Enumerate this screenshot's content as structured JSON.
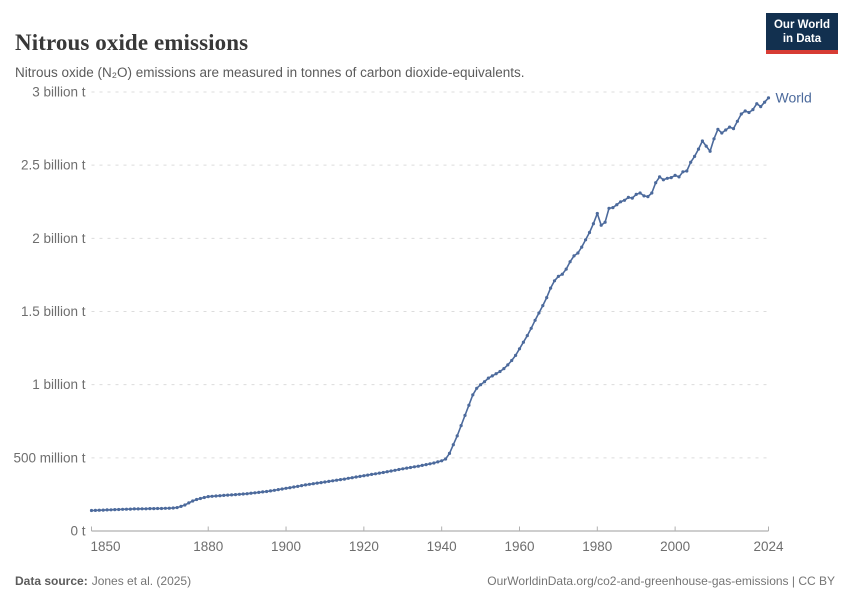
{
  "header": {
    "title": "Nitrous oxide emissions",
    "subtitle": "Nitrous oxide (N₂O) emissions are measured in tonnes of carbon dioxide-equivalents."
  },
  "logo": {
    "line1": "Our World",
    "line2": "in Data",
    "bg_color": "#12304f",
    "accent_color": "#d73c34"
  },
  "footer": {
    "data_source_label": "Data source:",
    "data_source_value": "Jones et al. (2025)",
    "link_text": "OurWorldinData.org/co2-and-greenhouse-gas-emissions | CC BY"
  },
  "chart_data": {
    "type": "line",
    "title": "Nitrous oxide emissions",
    "unit": "million tonnes of CO2-equivalents",
    "xlim": [
      1850,
      2024
    ],
    "ylim": [
      0,
      3000
    ],
    "grid": true,
    "line_color": "#4c6a9c",
    "axis_color": "#9e9e9e",
    "grid_color": "#dcdcdc",
    "tick_label_color": "#6e6e6e",
    "x_ticks": [
      1850,
      1880,
      1900,
      1920,
      1940,
      1960,
      1980,
      2000,
      2024
    ],
    "y_ticks": [
      {
        "v": 0,
        "label": "0 t"
      },
      {
        "v": 500,
        "label": "500 million t"
      },
      {
        "v": 1000,
        "label": "1 billion t"
      },
      {
        "v": 1500,
        "label": "1.5 billion t"
      },
      {
        "v": 2000,
        "label": "2 billion t"
      },
      {
        "v": 2500,
        "label": "2.5 billion t"
      },
      {
        "v": 3000,
        "label": "3 billion t"
      }
    ],
    "series": [
      {
        "name": "World",
        "x_start": 1850,
        "x_step": 1,
        "values": [
          140,
          141,
          142,
          143,
          144,
          145,
          146,
          147,
          148,
          149,
          150,
          151,
          151,
          152,
          152,
          153,
          153,
          154,
          154,
          155,
          156,
          157,
          160,
          168,
          178,
          192,
          205,
          215,
          222,
          229,
          235,
          237,
          239,
          241,
          243,
          245,
          247,
          249,
          251,
          253,
          255,
          258,
          261,
          264,
          267,
          270,
          274,
          278,
          283,
          287,
          292,
          296,
          301,
          305,
          310,
          315,
          319,
          323,
          327,
          331,
          335,
          339,
          343,
          347,
          351,
          355,
          360,
          364,
          369,
          373,
          378,
          382,
          387,
          391,
          396,
          400,
          405,
          410,
          415,
          420,
          425,
          430,
          434,
          439,
          443,
          448,
          454,
          459,
          465,
          472,
          480,
          492,
          530,
          590,
          650,
          720,
          790,
          860,
          930,
          975,
          1000,
          1020,
          1045,
          1060,
          1075,
          1090,
          1110,
          1135,
          1165,
          1200,
          1245,
          1290,
          1335,
          1385,
          1440,
          1490,
          1540,
          1595,
          1660,
          1710,
          1740,
          1755,
          1790,
          1840,
          1880,
          1900,
          1940,
          1990,
          2040,
          2100,
          2170,
          2090,
          2110,
          2205,
          2210,
          2230,
          2250,
          2260,
          2280,
          2275,
          2300,
          2310,
          2290,
          2285,
          2310,
          2380,
          2420,
          2400,
          2410,
          2415,
          2430,
          2420,
          2455,
          2460,
          2520,
          2560,
          2610,
          2665,
          2630,
          2595,
          2680,
          2745,
          2720,
          2740,
          2760,
          2750,
          2800,
          2850,
          2870,
          2860,
          2880,
          2920,
          2900,
          2930,
          2960
        ]
      }
    ]
  }
}
